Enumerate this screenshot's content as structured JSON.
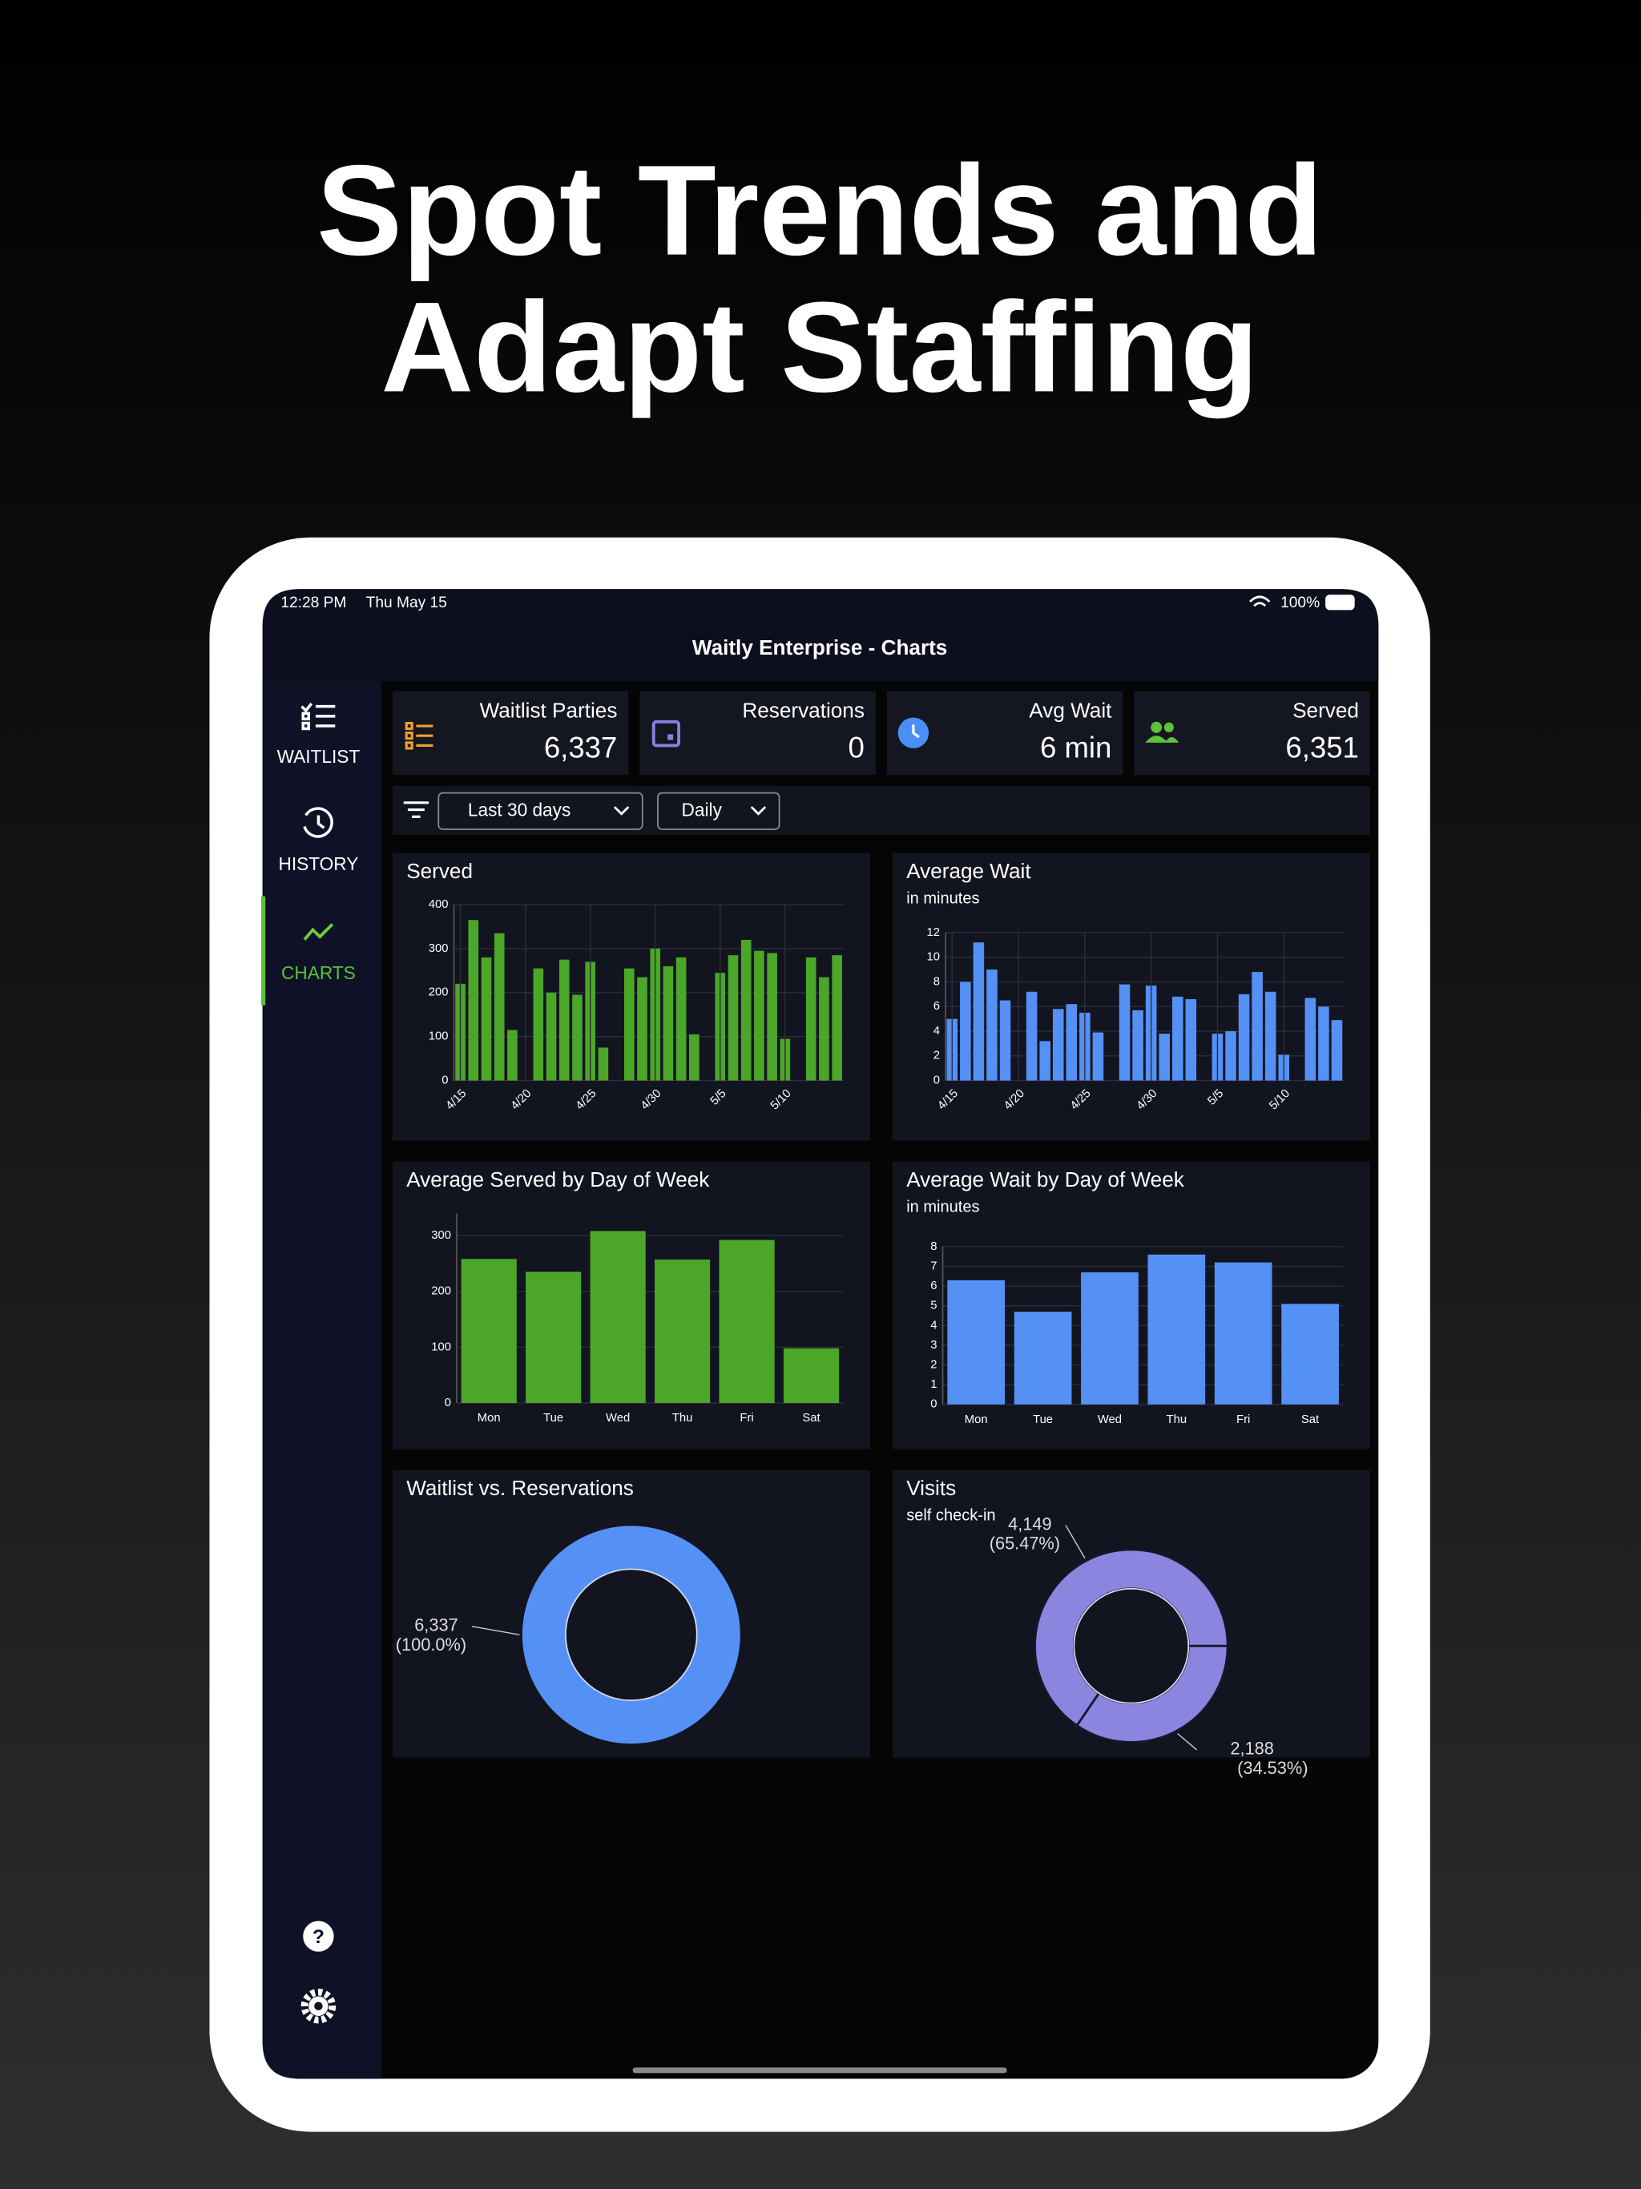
{
  "headline": [
    "Spot Trends and",
    "Adapt Staffing"
  ],
  "status_bar": {
    "time": "12:28 PM",
    "date": "Thu May 15",
    "battery": "100%"
  },
  "nav_title": "Waitly Enterprise - Charts",
  "sidebar": {
    "items": [
      {
        "label": "WAITLIST",
        "active": false
      },
      {
        "label": "HISTORY",
        "active": false
      },
      {
        "label": "CHARTS",
        "active": true
      }
    ]
  },
  "stats": [
    {
      "label": "Waitlist Parties",
      "value": "6,337",
      "color": "#f0a030"
    },
    {
      "label": "Reservations",
      "value": "0",
      "color": "#8b7fe0"
    },
    {
      "label": "Avg Wait",
      "value": "6 min",
      "color": "#4a8ff5"
    },
    {
      "label": "Served",
      "value": "6,351",
      "color": "#5cc23a"
    }
  ],
  "filters": [
    "Last 30 days",
    "Daily"
  ],
  "chart_data": [
    {
      "type": "bar",
      "title": "Served",
      "color": "#4ca627",
      "categories": [
        "4/15",
        null,
        null,
        null,
        null,
        "4/20",
        null,
        null,
        null,
        null,
        "4/25",
        null,
        null,
        null,
        null,
        "4/30",
        null,
        null,
        null,
        null,
        "5/5",
        null,
        null,
        null,
        null,
        "5/10",
        null,
        null,
        null,
        null
      ],
      "values": [
        220,
        365,
        280,
        335,
        115,
        0,
        255,
        200,
        275,
        195,
        270,
        75,
        0,
        255,
        235,
        300,
        260,
        280,
        105,
        0,
        245,
        285,
        320,
        295,
        290,
        95,
        0,
        280,
        235,
        285
      ],
      "ylim": [
        0,
        400
      ],
      "yticks": [
        0,
        100,
        200,
        300,
        400
      ],
      "grid": true
    },
    {
      "type": "bar",
      "title": "Average Wait",
      "subtitle": "in minutes",
      "color": "#5590f5",
      "categories": [
        "4/15",
        null,
        null,
        null,
        null,
        "4/20",
        null,
        null,
        null,
        null,
        "4/25",
        null,
        null,
        null,
        null,
        "4/30",
        null,
        null,
        null,
        null,
        "5/5",
        null,
        null,
        null,
        null,
        "5/10",
        null,
        null,
        null,
        null
      ],
      "values": [
        5,
        8,
        11.2,
        9,
        6.5,
        0,
        7.2,
        3.2,
        5.8,
        6.2,
        5.5,
        3.9,
        0,
        7.8,
        5.7,
        7.7,
        3.8,
        6.8,
        6.6,
        0,
        3.8,
        4,
        7,
        8.8,
        7.2,
        2.1,
        0,
        6.7,
        6,
        4.9
      ],
      "ylim": [
        0,
        12
      ],
      "yticks": [
        0,
        2,
        4,
        6,
        8,
        10,
        12
      ],
      "grid": true
    },
    {
      "type": "bar",
      "title": "Average Served by Day of Week",
      "color": "#4ca627",
      "categories": [
        "Mon",
        "Tue",
        "Wed",
        "Thu",
        "Fri",
        "Sat"
      ],
      "values": [
        258,
        235,
        308,
        257,
        292,
        98
      ],
      "ylim": [
        0,
        340
      ],
      "yticks": [
        0,
        100,
        200,
        300
      ],
      "grid": true
    },
    {
      "type": "bar",
      "title": "Average Wait by Day of Week",
      "subtitle": "in minutes",
      "color": "#5590f5",
      "categories": [
        "Mon",
        "Tue",
        "Wed",
        "Thu",
        "Fri",
        "Sat"
      ],
      "values": [
        6.3,
        4.7,
        6.7,
        7.6,
        7.2,
        5.1
      ],
      "ylim": [
        0,
        8
      ],
      "yticks": [
        0,
        1,
        2,
        3,
        4,
        5,
        6,
        7,
        8
      ],
      "grid": true
    },
    {
      "type": "donut",
      "title": "Waitlist vs. Reservations",
      "colors": [
        "#5590f5"
      ],
      "values": [
        6337
      ],
      "value_labels": [
        "6,337"
      ],
      "percent_labels": [
        "(100.0%)"
      ]
    },
    {
      "type": "donut",
      "title": "Visits",
      "subtitle": "self check-in",
      "colors": [
        "#8b85e0",
        "#8b85e0"
      ],
      "values": [
        4149,
        2188
      ],
      "value_labels": [
        "4,149",
        "2,188"
      ],
      "percent_labels": [
        "(65.47%)",
        "(34.53%)"
      ]
    }
  ]
}
